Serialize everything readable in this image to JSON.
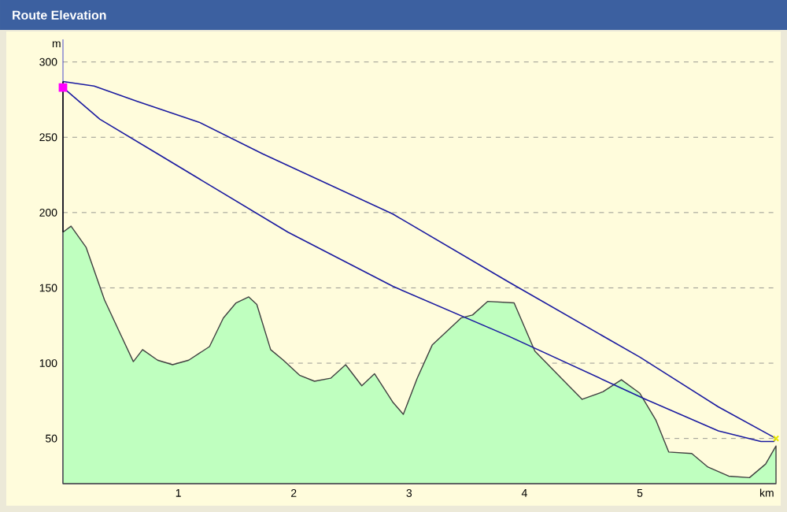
{
  "chart_data": {
    "type": "area",
    "title": "Route Elevation",
    "xlabel": "km",
    "ylabel": "m",
    "xlim": [
      0,
      6.18
    ],
    "ylim": [
      20,
      315
    ],
    "xticks": [
      1,
      2,
      3,
      4,
      5
    ],
    "yticks": [
      50,
      100,
      150,
      200,
      250,
      300
    ],
    "grid": "y",
    "series": [
      {
        "color": "#bfffbf",
        "x": [
          0,
          0.07,
          0.2,
          0.36,
          0.5,
          0.61,
          0.69,
          0.82,
          0.95,
          1.09,
          1.27,
          1.39,
          1.5,
          1.61,
          1.68,
          1.8,
          1.91,
          2.05,
          2.18,
          2.32,
          2.45,
          2.59,
          2.7,
          2.86,
          2.95,
          3.07,
          3.2,
          3.45,
          3.55,
          3.68,
          3.91,
          4.09,
          4.32,
          4.5,
          4.68,
          4.84,
          5.0,
          5.14,
          5.25,
          5.45,
          5.59,
          5.77,
          5.95,
          6.09,
          6.18
        ],
        "values": [
          187,
          191,
          177,
          142,
          119,
          101,
          109,
          102,
          99,
          102,
          111,
          130,
          140,
          144,
          139,
          109,
          102,
          92,
          88,
          90,
          99,
          85,
          93,
          74,
          66,
          90,
          112,
          130,
          132,
          141,
          140,
          108,
          90,
          76,
          81,
          89,
          80,
          62,
          41,
          40,
          31,
          25,
          24,
          33,
          45
        ]
      },
      {
        "type": "line",
        "color": "#1a1aa0",
        "x": [
          0,
          0.27,
          0.64,
          1.18,
          1.73,
          2.86,
          3.86,
          5.0,
          5.68,
          6.18
        ],
        "values": [
          287,
          284,
          274,
          260,
          239,
          199,
          154,
          104,
          71,
          50
        ]
      },
      {
        "type": "line",
        "color": "#1a1aa0",
        "x": [
          0,
          0.32,
          0.82,
          1.95,
          2.86,
          3.86,
          5.05,
          5.68,
          6.05,
          6.16,
          6.18
        ],
        "values": [
          283,
          262,
          239,
          187,
          151,
          118,
          76,
          55,
          48,
          48,
          50
        ]
      },
      {
        "type": "line",
        "color": "#000000",
        "x": [
          0,
          0
        ],
        "values": [
          187,
          287
        ]
      },
      {
        "type": "scatter",
        "color": "#ff00ff",
        "marker": "square",
        "x": [
          0
        ],
        "values": [
          283
        ]
      },
      {
        "type": "scatter",
        "color": "#e8e800",
        "marker": "cross",
        "x": [
          6.18
        ],
        "values": [
          50
        ]
      }
    ]
  }
}
